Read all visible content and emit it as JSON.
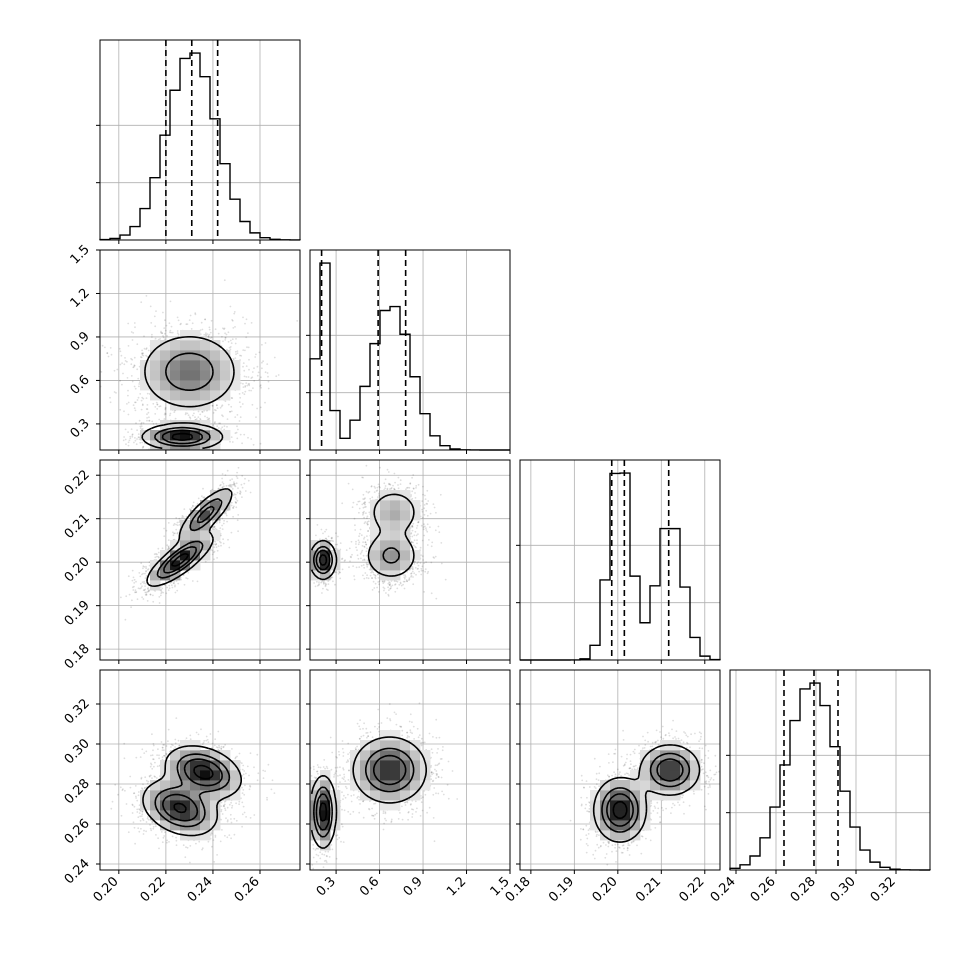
{
  "chart_data": {
    "type": "corner",
    "n_params": 4,
    "grid": true,
    "quantiles": [
      0.16,
      0.5,
      0.84
    ],
    "params": [
      {
        "index": 0,
        "range": [
          0.192,
          0.277
        ],
        "ticks": [
          0.2,
          0.22,
          0.24,
          0.26
        ],
        "tick_labels": [
          "0.20",
          "0.22",
          "0.24",
          "0.26"
        ],
        "quantile_values": [
          0.22,
          0.231,
          0.242
        ],
        "distribution": {
          "components": [
            {
              "weight": 1.0,
              "mean": 0.231,
              "sd": 0.0105
            }
          ]
        }
      },
      {
        "index": 1,
        "range": [
          0.12,
          1.5
        ],
        "ticks": [
          0.3,
          0.6,
          0.9,
          1.2,
          1.5
        ],
        "tick_labels": [
          "0.3",
          "0.6",
          "0.9",
          "1.2",
          "1.5"
        ],
        "quantile_values": [
          0.2,
          0.59,
          0.78
        ],
        "distribution": {
          "components": [
            {
              "weight": 0.3,
              "mean": 0.21,
              "sd": 0.045
            },
            {
              "weight": 0.7,
              "mean": 0.68,
              "sd": 0.14
            }
          ]
        }
      },
      {
        "index": 2,
        "range": [
          0.1775,
          0.2235
        ],
        "ticks": [
          0.18,
          0.19,
          0.2,
          0.21,
          0.22
        ],
        "tick_labels": [
          "0.18",
          "0.19",
          "0.20",
          "0.21",
          "0.22"
        ],
        "quantile_values": [
          0.1986,
          0.2015,
          0.2117
        ],
        "distribution": {
          "components": [
            {
              "weight": 0.55,
              "mean": 0.2005,
              "sd": 0.0025
            },
            {
              "weight": 0.45,
              "mean": 0.212,
              "sd": 0.003
            }
          ]
        }
      },
      {
        "index": 3,
        "range": [
          0.237,
          0.337
        ],
        "ticks": [
          0.24,
          0.26,
          0.28,
          0.3,
          0.32
        ],
        "tick_labels": [
          "0.24",
          "0.26",
          "0.28",
          "0.30",
          "0.32"
        ],
        "quantile_values": [
          0.264,
          0.279,
          0.291
        ],
        "distribution": {
          "components": [
            {
              "weight": 1.0,
              "mean": 0.278,
              "sd": 0.0125
            }
          ]
        }
      }
    ],
    "pairs": [
      {
        "x": 0,
        "y": 1,
        "modes": [
          {
            "weight": 0.7,
            "mx": 0.23,
            "my": 0.66,
            "sx": 0.011,
            "sy": 0.14,
            "rho": 0.0
          },
          {
            "weight": 0.3,
            "mx": 0.227,
            "my": 0.21,
            "sx": 0.0085,
            "sy": 0.045,
            "rho": 0.0
          }
        ]
      },
      {
        "x": 0,
        "y": 2,
        "modes": [
          {
            "weight": 0.6,
            "mx": 0.226,
            "my": 0.2005,
            "sx": 0.007,
            "sy": 0.003,
            "rho": 0.8
          },
          {
            "weight": 0.4,
            "mx": 0.237,
            "my": 0.211,
            "sx": 0.006,
            "sy": 0.0032,
            "rho": 0.8
          }
        ]
      },
      {
        "x": 1,
        "y": 2,
        "modes": [
          {
            "weight": 0.3,
            "mx": 0.21,
            "my": 0.2005,
            "sx": 0.045,
            "sy": 0.0022,
            "rho": 0.0
          },
          {
            "weight": 0.4,
            "mx": 0.68,
            "my": 0.2015,
            "sx": 0.1,
            "sy": 0.003,
            "rho": 0.0
          },
          {
            "weight": 0.3,
            "mx": 0.7,
            "my": 0.2115,
            "sx": 0.1,
            "sy": 0.003,
            "rho": 0.0
          }
        ]
      },
      {
        "x": 0,
        "y": 3,
        "modes": [
          {
            "weight": 0.5,
            "mx": 0.236,
            "my": 0.286,
            "sx": 0.008,
            "sy": 0.0065,
            "rho": -0.3
          },
          {
            "weight": 0.5,
            "mx": 0.226,
            "my": 0.268,
            "sx": 0.008,
            "sy": 0.007,
            "rho": -0.3
          }
        ]
      },
      {
        "x": 1,
        "y": 3,
        "modes": [
          {
            "weight": 0.3,
            "mx": 0.21,
            "my": 0.266,
            "sx": 0.045,
            "sy": 0.009,
            "rho": 0.0
          },
          {
            "weight": 0.7,
            "mx": 0.67,
            "my": 0.287,
            "sx": 0.13,
            "sy": 0.0085,
            "rho": 0.0
          }
        ]
      },
      {
        "x": 2,
        "y": 3,
        "modes": [
          {
            "weight": 0.55,
            "mx": 0.2005,
            "my": 0.267,
            "sx": 0.003,
            "sy": 0.008,
            "rho": 0.0
          },
          {
            "weight": 0.45,
            "mx": 0.212,
            "my": 0.287,
            "sx": 0.0035,
            "sy": 0.0065,
            "rho": 0.0
          }
        ]
      }
    ]
  }
}
